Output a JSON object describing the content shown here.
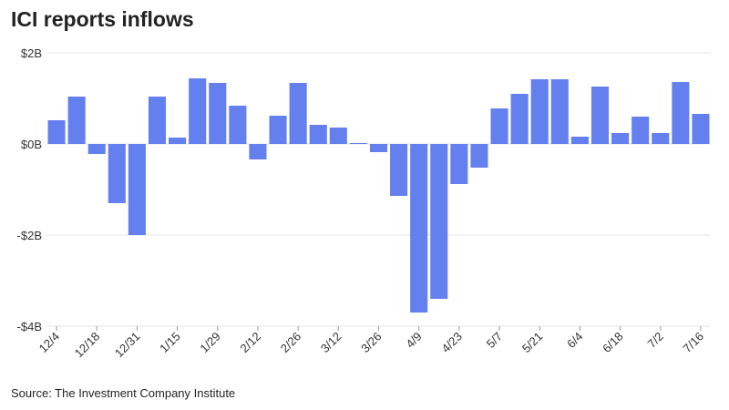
{
  "chart_data": {
    "type": "bar",
    "title": "ICI reports inflows",
    "source": "Source: The Investment Company Institute",
    "xlabel": "",
    "ylabel": "",
    "ylim": [
      -4,
      2
    ],
    "yticks": [
      2,
      0,
      -2,
      -4
    ],
    "ytick_labels": [
      "$2B",
      "$0B",
      "-$2B",
      "-$4B"
    ],
    "xtick_labels": [
      "12/4",
      "12/18",
      "12/31",
      "1/15",
      "1/29",
      "2/12",
      "2/26",
      "3/12",
      "3/26",
      "4/9",
      "4/23",
      "5/7",
      "5/21",
      "6/4",
      "6/18",
      "7/2",
      "7/16"
    ],
    "xtick_every": 2,
    "values": [
      0.52,
      1.04,
      -0.22,
      -1.3,
      -2.0,
      1.04,
      0.14,
      1.44,
      1.34,
      0.84,
      -0.34,
      0.62,
      1.34,
      0.42,
      0.36,
      0.02,
      -0.18,
      -1.14,
      -3.7,
      -3.4,
      -0.88,
      -0.52,
      0.78,
      1.1,
      1.42,
      1.42,
      0.16,
      1.26,
      0.24,
      0.6,
      0.24,
      1.36,
      0.66
    ],
    "units": "billions USD",
    "grid": true,
    "bar_color": "#6480ef"
  }
}
